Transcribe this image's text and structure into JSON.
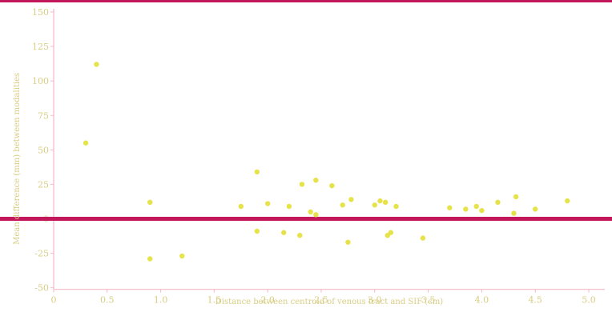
{
  "chart_data": {
    "type": "scatter",
    "title": "",
    "xlabel": "Distance between centroid of venous tract and SIF (cm)",
    "ylabel": "Mean difference (mm) between modalities",
    "xlim": [
      0,
      5.0
    ],
    "ylim": [
      -25,
      150
    ],
    "x_ticks": [
      "0",
      "0.5",
      "1.0",
      "1.5",
      "2.0",
      "2.5",
      "3.0",
      "3.5",
      "4.0",
      "4.5",
      "5.0"
    ],
    "y_ticks": [
      "150",
      "125",
      "100",
      "75",
      "50",
      "25",
      "0",
      "-25",
      "-50"
    ],
    "y_tick_values": [
      150,
      125,
      100,
      75,
      50,
      25,
      0,
      -25,
      -50
    ],
    "x_tick_values": [
      0,
      0.5,
      1.0,
      1.5,
      2.0,
      2.5,
      3.0,
      3.5,
      4.0,
      4.5,
      5.0
    ],
    "reference_line_y": 0,
    "grid": false,
    "colors": {
      "points": "#e6e34a",
      "reference_line": "#c2185b",
      "axis": "#f5b8c8",
      "text": "#d8cd83"
    },
    "series": [
      {
        "points": [
          {
            "x": 0.3,
            "y": 55
          },
          {
            "x": 0.4,
            "y": 112
          },
          {
            "x": 0.9,
            "y": 12
          },
          {
            "x": 0.9,
            "y": -29
          },
          {
            "x": 1.2,
            "y": -27
          },
          {
            "x": 1.75,
            "y": 9
          },
          {
            "x": 1.9,
            "y": -9
          },
          {
            "x": 1.9,
            "y": 34
          },
          {
            "x": 2.0,
            "y": 11
          },
          {
            "x": 2.15,
            "y": -10
          },
          {
            "x": 2.2,
            "y": 9
          },
          {
            "x": 2.3,
            "y": -12
          },
          {
            "x": 2.32,
            "y": 25
          },
          {
            "x": 2.4,
            "y": 5
          },
          {
            "x": 2.45,
            "y": 3
          },
          {
            "x": 2.45,
            "y": 28
          },
          {
            "x": 2.6,
            "y": 24
          },
          {
            "x": 2.7,
            "y": 10
          },
          {
            "x": 2.75,
            "y": -17
          },
          {
            "x": 2.78,
            "y": 14
          },
          {
            "x": 3.0,
            "y": 10
          },
          {
            "x": 3.05,
            "y": 13
          },
          {
            "x": 3.1,
            "y": 12
          },
          {
            "x": 3.12,
            "y": -12
          },
          {
            "x": 3.15,
            "y": -10
          },
          {
            "x": 3.2,
            "y": 9
          },
          {
            "x": 3.45,
            "y": -14
          },
          {
            "x": 3.7,
            "y": 8
          },
          {
            "x": 3.85,
            "y": 7
          },
          {
            "x": 3.95,
            "y": 9
          },
          {
            "x": 4.0,
            "y": 6
          },
          {
            "x": 4.15,
            "y": 12
          },
          {
            "x": 4.3,
            "y": 4
          },
          {
            "x": 4.32,
            "y": 16
          },
          {
            "x": 4.5,
            "y": 7
          },
          {
            "x": 4.8,
            "y": 13
          }
        ]
      }
    ]
  }
}
